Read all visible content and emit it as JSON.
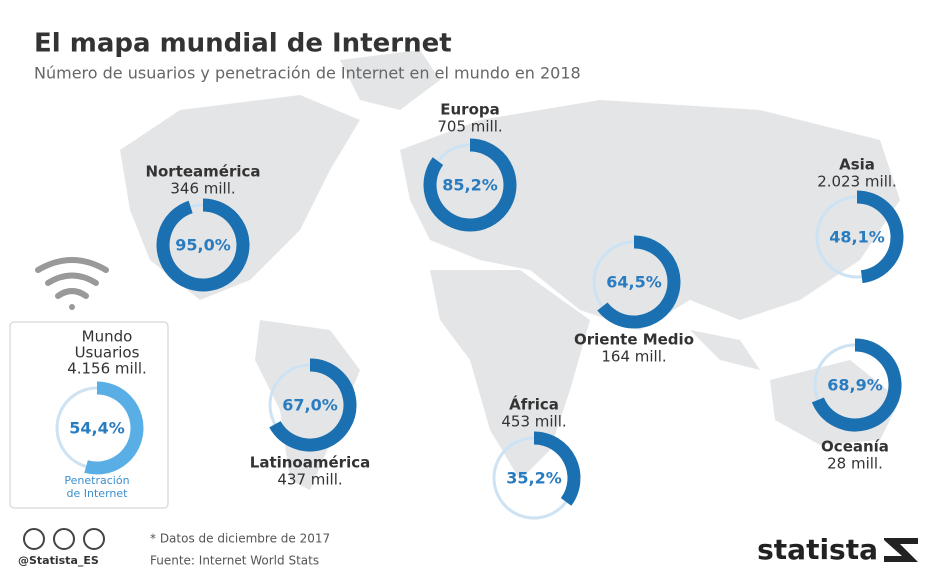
{
  "chart_data": {
    "type": "donut",
    "title": "El mapa mundial de Internet",
    "subtitle": "Número de usuarios y penetración de Internet en el mundo en 2018",
    "categories": [
      "Norteamérica",
      "Europa",
      "Asia",
      "Oriente Medio",
      "Latinoamérica",
      "África",
      "Oceanía"
    ],
    "users": [
      "346 mill.",
      "705 mill.",
      "2.023 mill.",
      "164 mill.",
      "437 mill.",
      "453 mill.",
      "28 mill."
    ],
    "values": [
      95.0,
      85.2,
      48.1,
      64.5,
      67.0,
      35.2,
      68.9
    ],
    "value_labels": [
      "95,0%",
      "85,2%",
      "48,1%",
      "64,5%",
      "67,0%",
      "35,2%",
      "68,9%"
    ],
    "color": "#1a70b0",
    "track_color": "#cde3f3",
    "world": {
      "name": "Mundo",
      "users_caption": "Usuarios",
      "users": "4.156 mill.",
      "value": 54.4,
      "value_label": "54,4%",
      "caption": [
        "Penetración",
        "de Internet"
      ],
      "color": "#5aaee6"
    },
    "footnote": "* Datos de diciembre de 2017",
    "source": "Fuente: Internet World Stats",
    "handle": "@Statista_ES",
    "brand": "statista"
  }
}
